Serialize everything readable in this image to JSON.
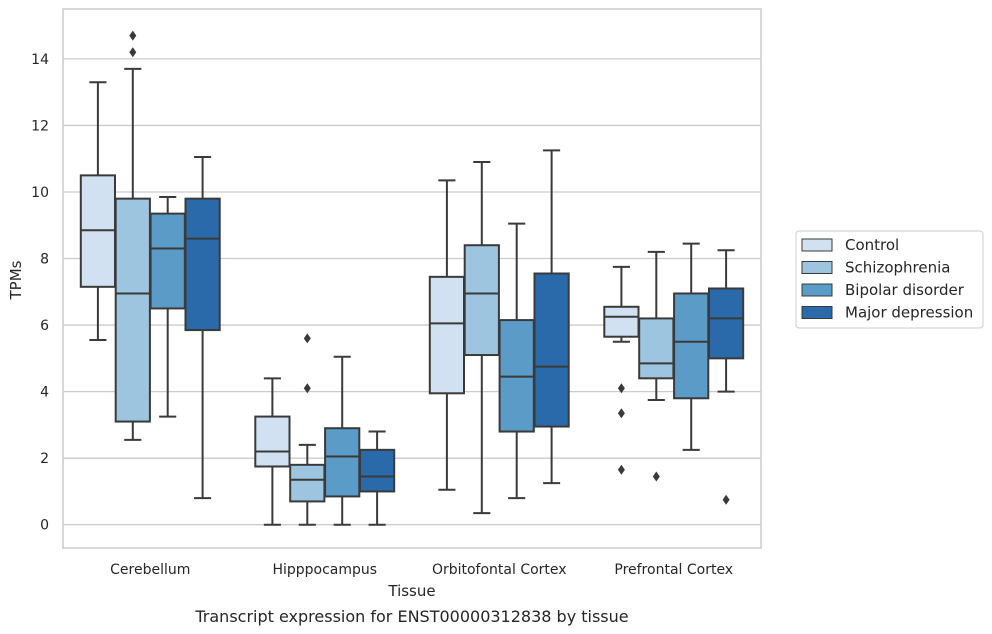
{
  "chart_data": {
    "type": "boxplot",
    "title": "",
    "caption": "Transcript expression for ENST00000312838 by tissue",
    "xlabel": "Tissue",
    "ylabel": "TPMs",
    "ylim": [
      -0.7,
      15.5
    ],
    "yticks": [
      0,
      2,
      4,
      6,
      8,
      10,
      12,
      14
    ],
    "grid": true,
    "legend_position": "right",
    "categories": [
      "Cerebellum",
      "Hipppocampus",
      "Orbitofontal Cortex",
      "Prefrontal Cortex"
    ],
    "series": [
      {
        "name": "Control",
        "color": "#d1e1f1",
        "boxes": [
          {
            "whislo": 5.55,
            "q1": 7.15,
            "med": 8.85,
            "q3": 10.5,
            "whishi": 13.3,
            "fliers": []
          },
          {
            "whislo": 0.0,
            "q1": 1.75,
            "med": 2.2,
            "q3": 3.25,
            "whishi": 4.4,
            "fliers": []
          },
          {
            "whislo": 1.05,
            "q1": 3.95,
            "med": 6.05,
            "q3": 7.45,
            "whishi": 10.35,
            "fliers": []
          },
          {
            "whislo": 5.5,
            "q1": 5.65,
            "med": 6.25,
            "q3": 6.55,
            "whishi": 7.75,
            "fliers": [
              4.1,
              3.35,
              1.65
            ]
          }
        ]
      },
      {
        "name": "Schizophrenia",
        "color": "#9dc5df",
        "boxes": [
          {
            "whislo": 2.55,
            "q1": 3.1,
            "med": 6.95,
            "q3": 9.8,
            "whishi": 13.7,
            "fliers": [
              14.7,
              14.2
            ]
          },
          {
            "whislo": 0.0,
            "q1": 0.7,
            "med": 1.35,
            "q3": 1.8,
            "whishi": 2.4,
            "fliers": [
              5.6,
              4.1
            ]
          },
          {
            "whislo": 0.35,
            "q1": 5.1,
            "med": 6.95,
            "q3": 8.4,
            "whishi": 10.9,
            "fliers": []
          },
          {
            "whislo": 3.75,
            "q1": 4.4,
            "med": 4.85,
            "q3": 6.2,
            "whishi": 8.2,
            "fliers": [
              1.45
            ]
          }
        ]
      },
      {
        "name": "Bipolar disorder",
        "color": "#5b9bc8",
        "boxes": [
          {
            "whislo": 3.25,
            "q1": 6.5,
            "med": 8.3,
            "q3": 9.35,
            "whishi": 9.85,
            "fliers": []
          },
          {
            "whislo": 0.0,
            "q1": 0.85,
            "med": 2.05,
            "q3": 2.9,
            "whishi": 5.05,
            "fliers": []
          },
          {
            "whislo": 0.8,
            "q1": 2.8,
            "med": 4.45,
            "q3": 6.15,
            "whishi": 9.05,
            "fliers": []
          },
          {
            "whislo": 2.25,
            "q1": 3.8,
            "med": 5.5,
            "q3": 6.95,
            "whishi": 8.45,
            "fliers": []
          }
        ]
      },
      {
        "name": "Major depression",
        "color": "#2a6aab",
        "boxes": [
          {
            "whislo": 0.8,
            "q1": 5.85,
            "med": 8.6,
            "q3": 9.8,
            "whishi": 11.05,
            "fliers": []
          },
          {
            "whislo": 0.0,
            "q1": 1.0,
            "med": 1.45,
            "q3": 2.25,
            "whishi": 2.8,
            "fliers": []
          },
          {
            "whislo": 1.25,
            "q1": 2.95,
            "med": 4.75,
            "q3": 7.55,
            "whishi": 11.25,
            "fliers": []
          },
          {
            "whislo": 4.0,
            "q1": 5.0,
            "med": 6.2,
            "q3": 7.1,
            "whishi": 8.25,
            "fliers": [
              0.75
            ]
          }
        ]
      }
    ]
  }
}
